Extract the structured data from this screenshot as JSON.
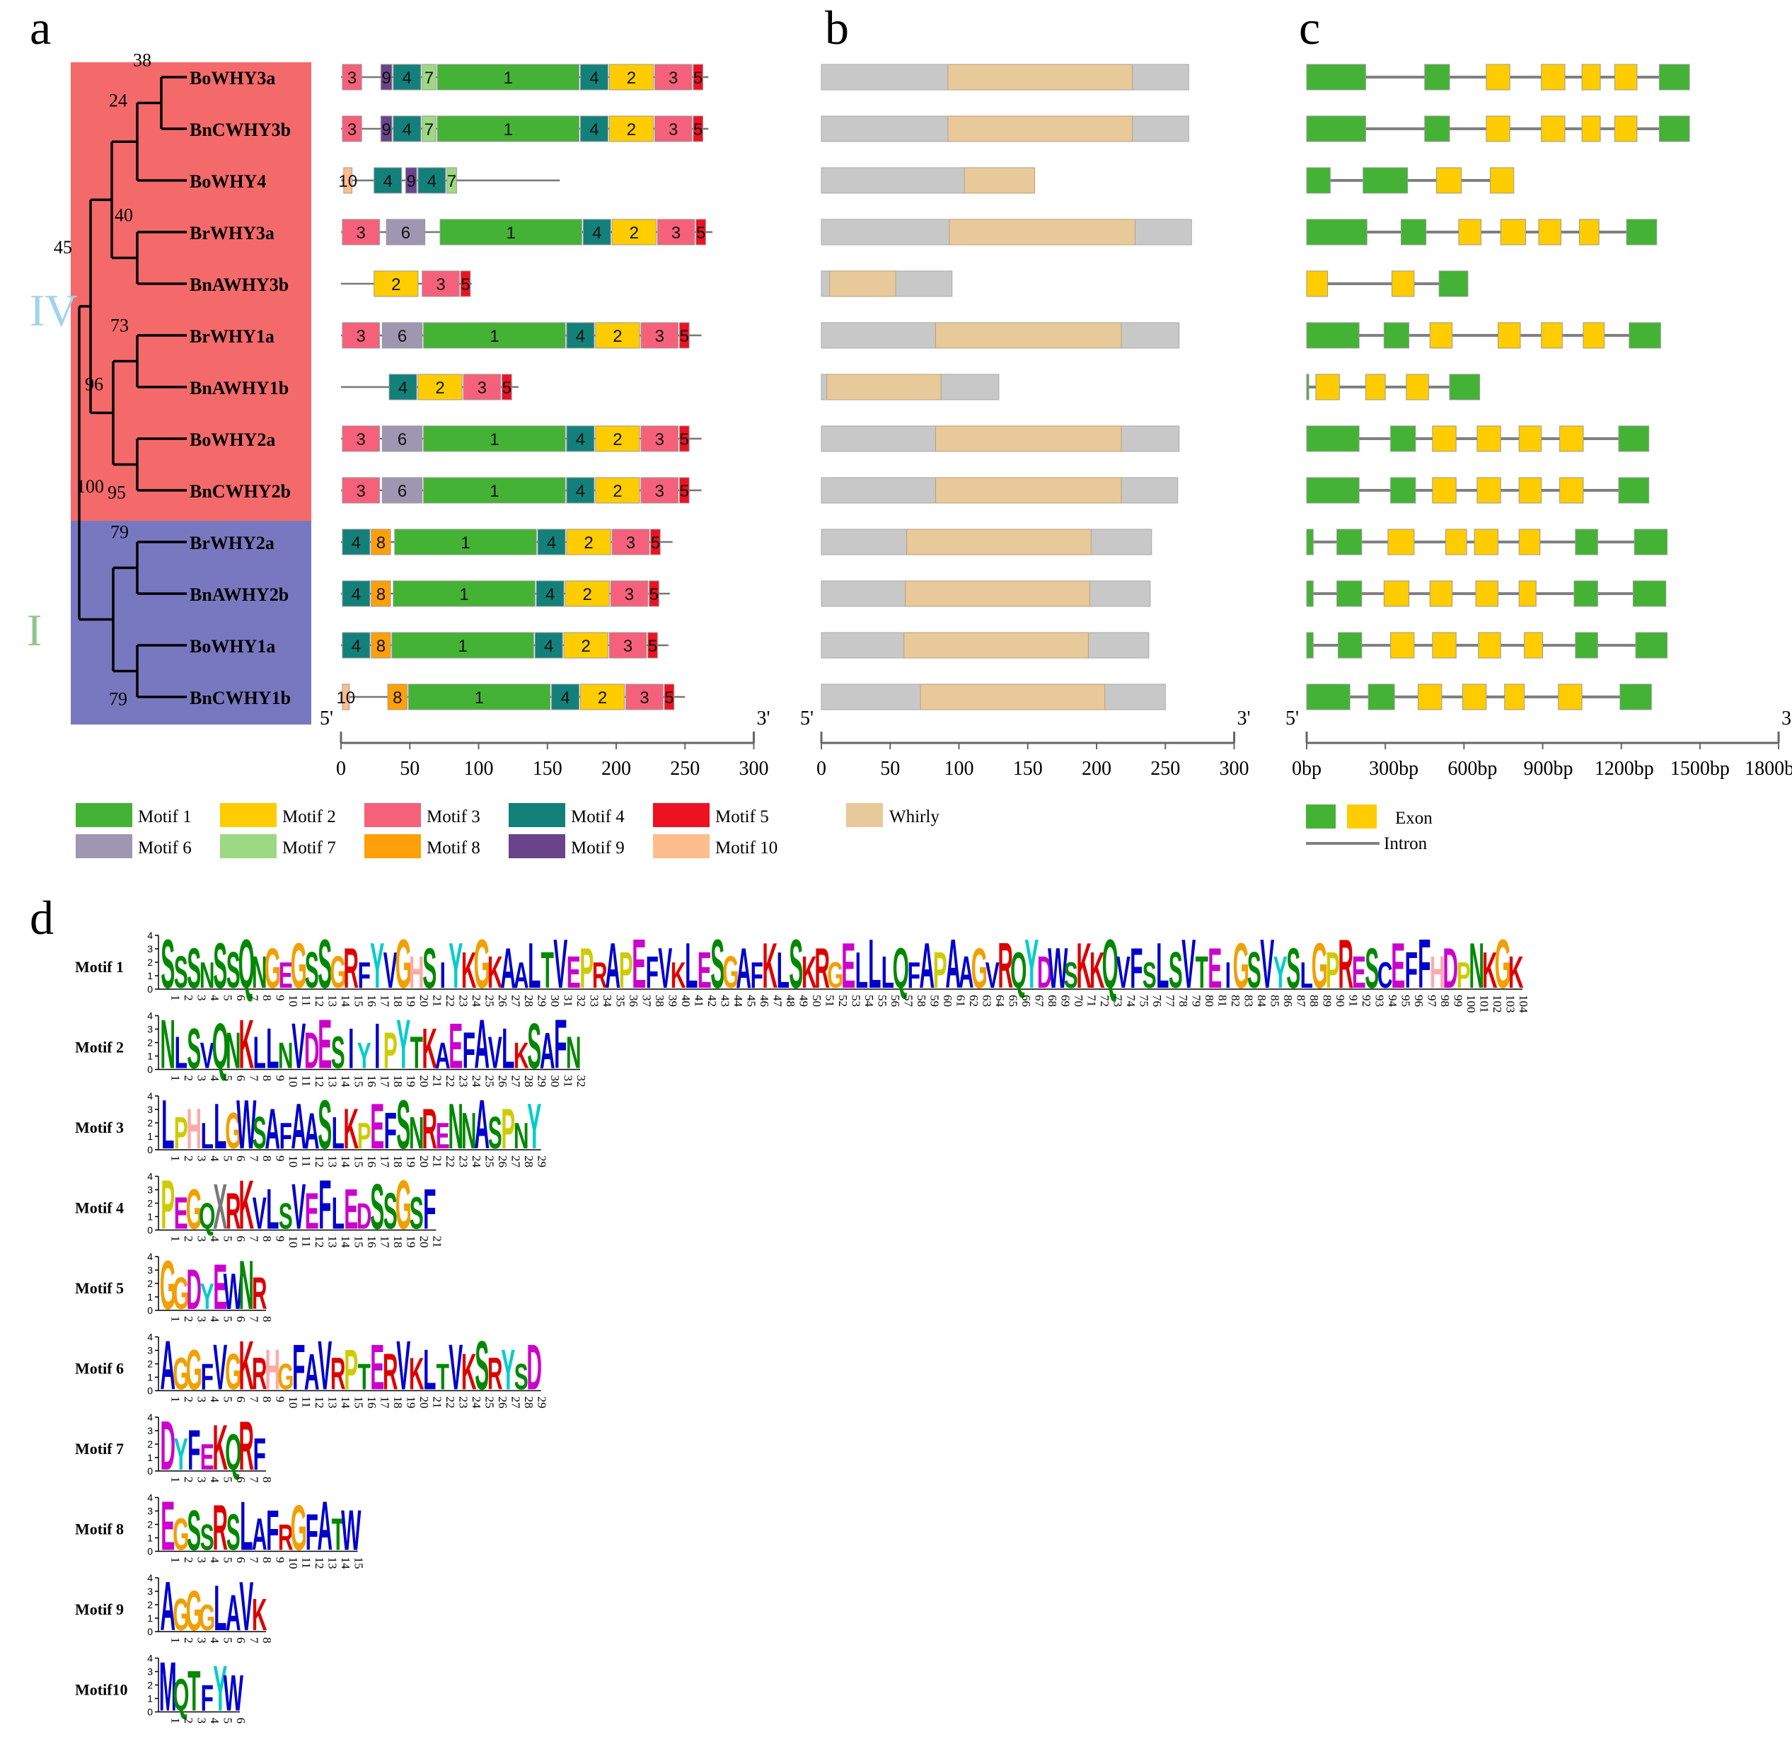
{
  "panels": {
    "a": "a",
    "b": "b",
    "c": "c",
    "d": "d"
  },
  "clades": [
    {
      "label": "IV",
      "color": "#f46a6a",
      "text_color": "#9fd3ee"
    },
    {
      "label": "I",
      "color": "#7878c0",
      "text_color": "#8cc88a"
    }
  ],
  "genes": [
    "BoWHY3a",
    "BnCWHY3b",
    "BoWHY4",
    "BrWHY3a",
    "BnAWHY3b",
    "BrWHY1a",
    "BnAWHY1b",
    "BoWHY2a",
    "BnCWHY2b",
    "BrWHY2a",
    "BnAWHY2b",
    "BoWHY1a",
    "BnCWHY1b"
  ],
  "bootstrap": [
    "38",
    "24",
    "45",
    "40",
    "73",
    "96",
    "95",
    "79",
    "100",
    "79"
  ],
  "motif_colors": {
    "1": "#44b335",
    "2": "#ffcc00",
    "3": "#f5607a",
    "4": "#138079",
    "5": "#ee1122",
    "6": "#9f97b1",
    "7": "#9dd883",
    "8": "#ff9f0a",
    "9": "#6a448a",
    "10": "#ffbd8e"
  },
  "motif_structures": [
    {
      "len": 267,
      "motifs": [
        [
          1,
          15,
          "3"
        ],
        [
          29,
          37,
          "9"
        ],
        [
          38,
          58,
          "4"
        ],
        [
          59,
          69,
          "7"
        ],
        [
          70,
          173,
          "1"
        ],
        [
          174,
          194,
          "4"
        ],
        [
          195,
          227,
          "2"
        ],
        [
          228,
          255,
          "3"
        ],
        [
          256,
          263,
          "5"
        ]
      ]
    },
    {
      "len": 267,
      "motifs": [
        [
          1,
          15,
          "3"
        ],
        [
          29,
          37,
          "9"
        ],
        [
          38,
          58,
          "4"
        ],
        [
          59,
          69,
          "7"
        ],
        [
          70,
          173,
          "1"
        ],
        [
          174,
          194,
          "4"
        ],
        [
          195,
          227,
          "2"
        ],
        [
          228,
          255,
          "3"
        ],
        [
          256,
          263,
          "5"
        ]
      ]
    },
    {
      "len": 159,
      "motifs": [
        [
          2,
          8,
          "10"
        ],
        [
          24,
          44,
          "4"
        ],
        [
          47,
          55,
          "9"
        ],
        [
          56,
          76,
          "4"
        ],
        [
          77,
          84,
          "7"
        ]
      ]
    },
    {
      "len": 270,
      "motifs": [
        [
          1,
          28,
          "3"
        ],
        [
          33,
          61,
          "6"
        ],
        [
          72,
          175,
          "1"
        ],
        [
          176,
          196,
          "4"
        ],
        [
          197,
          229,
          "2"
        ],
        [
          230,
          257,
          "3"
        ],
        [
          258,
          265,
          "5"
        ]
      ]
    },
    {
      "len": 95,
      "motifs": [
        [
          24,
          56,
          "2"
        ],
        [
          59,
          86,
          "3"
        ],
        [
          87,
          94,
          "5"
        ]
      ]
    },
    {
      "len": 262,
      "motifs": [
        [
          1,
          28,
          "3"
        ],
        [
          30,
          59,
          "6"
        ],
        [
          60,
          163,
          "1"
        ],
        [
          164,
          184,
          "4"
        ],
        [
          185,
          217,
          "2"
        ],
        [
          218,
          245,
          "3"
        ],
        [
          246,
          253,
          "5"
        ]
      ]
    },
    {
      "len": 129,
      "motifs": [
        [
          35,
          55,
          "4"
        ],
        [
          56,
          88,
          "2"
        ],
        [
          89,
          116,
          "3"
        ],
        [
          117,
          124,
          "5"
        ]
      ]
    },
    {
      "len": 262,
      "motifs": [
        [
          1,
          28,
          "3"
        ],
        [
          30,
          59,
          "6"
        ],
        [
          60,
          163,
          "1"
        ],
        [
          164,
          184,
          "4"
        ],
        [
          185,
          217,
          "2"
        ],
        [
          218,
          245,
          "3"
        ],
        [
          246,
          253,
          "5"
        ]
      ]
    },
    {
      "len": 262,
      "motifs": [
        [
          1,
          28,
          "3"
        ],
        [
          30,
          59,
          "6"
        ],
        [
          60,
          163,
          "1"
        ],
        [
          164,
          184,
          "4"
        ],
        [
          185,
          217,
          "2"
        ],
        [
          218,
          245,
          "3"
        ],
        [
          246,
          253,
          "5"
        ]
      ]
    },
    {
      "len": 241,
      "motifs": [
        [
          1,
          21,
          "4"
        ],
        [
          22,
          36,
          "8"
        ],
        [
          39,
          142,
          "1"
        ],
        [
          143,
          163,
          "4"
        ],
        [
          164,
          196,
          "2"
        ],
        [
          197,
          224,
          "3"
        ],
        [
          225,
          232,
          "5"
        ]
      ]
    },
    {
      "len": 239,
      "motifs": [
        [
          1,
          21,
          "4"
        ],
        [
          22,
          36,
          "8"
        ],
        [
          38,
          141,
          "1"
        ],
        [
          142,
          162,
          "4"
        ],
        [
          163,
          195,
          "2"
        ],
        [
          196,
          223,
          "3"
        ],
        [
          224,
          231,
          "5"
        ]
      ]
    },
    {
      "len": 238,
      "motifs": [
        [
          1,
          21,
          "4"
        ],
        [
          22,
          36,
          "8"
        ],
        [
          37,
          140,
          "1"
        ],
        [
          141,
          161,
          "4"
        ],
        [
          162,
          194,
          "2"
        ],
        [
          195,
          222,
          "3"
        ],
        [
          223,
          230,
          "5"
        ]
      ]
    },
    {
      "len": 250,
      "motifs": [
        [
          1,
          6,
          "10"
        ],
        [
          34,
          48,
          "8"
        ],
        [
          49,
          152,
          "1"
        ],
        [
          153,
          173,
          "4"
        ],
        [
          174,
          206,
          "2"
        ],
        [
          207,
          234,
          "3"
        ],
        [
          235,
          242,
          "5"
        ]
      ]
    }
  ],
  "domain_structures": [
    {
      "len": 267,
      "whirly": [
        92,
        226
      ]
    },
    {
      "len": 267,
      "whirly": [
        92,
        226
      ]
    },
    {
      "len": 155,
      "whirly": [
        104,
        155
      ]
    },
    {
      "len": 269,
      "whirly": [
        93,
        228
      ]
    },
    {
      "len": 95,
      "whirly": [
        6,
        54
      ]
    },
    {
      "len": 260,
      "whirly": [
        83,
        218
      ]
    },
    {
      "len": 129,
      "whirly": [
        4,
        87
      ]
    },
    {
      "len": 260,
      "whirly": [
        83,
        218
      ]
    },
    {
      "len": 259,
      "whirly": [
        83,
        218
      ]
    },
    {
      "len": 240,
      "whirly": [
        62,
        196
      ]
    },
    {
      "len": 239,
      "whirly": [
        61,
        195
      ]
    },
    {
      "len": 238,
      "whirly": [
        60,
        194
      ]
    },
    {
      "len": 250,
      "whirly": [
        72,
        206
      ]
    }
  ],
  "gene_structures": [
    {
      "len": 1460,
      "exons": [
        [
          0,
          225,
          "g"
        ],
        [
          450,
          545,
          "g"
        ],
        [
          685,
          775,
          "y"
        ],
        [
          895,
          985,
          "y"
        ],
        [
          1050,
          1120,
          "y"
        ],
        [
          1175,
          1260,
          "y"
        ],
        [
          1345,
          1460,
          "g"
        ]
      ]
    },
    {
      "len": 1460,
      "exons": [
        [
          0,
          225,
          "g"
        ],
        [
          450,
          545,
          "g"
        ],
        [
          685,
          775,
          "y"
        ],
        [
          895,
          985,
          "y"
        ],
        [
          1050,
          1120,
          "y"
        ],
        [
          1175,
          1260,
          "y"
        ],
        [
          1345,
          1460,
          "g"
        ]
      ]
    },
    {
      "len": 790,
      "exons": [
        [
          0,
          90,
          "g"
        ],
        [
          215,
          385,
          "g"
        ],
        [
          495,
          590,
          "y"
        ],
        [
          700,
          790,
          "y"
        ]
      ]
    },
    {
      "len": 1335,
      "exons": [
        [
          0,
          230,
          "g"
        ],
        [
          360,
          455,
          "g"
        ],
        [
          580,
          665,
          "y"
        ],
        [
          740,
          835,
          "y"
        ],
        [
          885,
          970,
          "y"
        ],
        [
          1040,
          1115,
          "y"
        ],
        [
          1220,
          1335,
          "g"
        ]
      ]
    },
    {
      "len": 615,
      "exons": [
        [
          0,
          80,
          "y"
        ],
        [
          325,
          410,
          "y"
        ],
        [
          505,
          615,
          "g"
        ]
      ]
    },
    {
      "len": 1350,
      "exons": [
        [
          0,
          200,
          "g"
        ],
        [
          295,
          390,
          "g"
        ],
        [
          470,
          555,
          "y"
        ],
        [
          730,
          815,
          "y"
        ],
        [
          895,
          975,
          "y"
        ],
        [
          1055,
          1135,
          "y"
        ],
        [
          1230,
          1350,
          "g"
        ]
      ]
    },
    {
      "len": 660,
      "exons": [
        [
          0,
          8,
          "g"
        ],
        [
          35,
          125,
          "y"
        ],
        [
          225,
          300,
          "y"
        ],
        [
          380,
          465,
          "y"
        ],
        [
          545,
          660,
          "g"
        ]
      ]
    },
    {
      "len": 1305,
      "exons": [
        [
          0,
          200,
          "g"
        ],
        [
          320,
          415,
          "g"
        ],
        [
          480,
          570,
          "y"
        ],
        [
          650,
          740,
          "y"
        ],
        [
          810,
          895,
          "y"
        ],
        [
          965,
          1055,
          "y"
        ],
        [
          1190,
          1305,
          "g"
        ]
      ]
    },
    {
      "len": 1305,
      "exons": [
        [
          0,
          200,
          "g"
        ],
        [
          320,
          415,
          "g"
        ],
        [
          480,
          570,
          "y"
        ],
        [
          650,
          740,
          "y"
        ],
        [
          810,
          895,
          "y"
        ],
        [
          965,
          1055,
          "y"
        ],
        [
          1190,
          1305,
          "g"
        ]
      ]
    },
    {
      "len": 1375,
      "exons": [
        [
          0,
          25,
          "g"
        ],
        [
          115,
          210,
          "g"
        ],
        [
          310,
          410,
          "y"
        ],
        [
          530,
          610,
          "y"
        ],
        [
          640,
          730,
          "y"
        ],
        [
          810,
          890,
          "y"
        ],
        [
          1025,
          1110,
          "g"
        ],
        [
          1250,
          1375,
          "g"
        ]
      ]
    },
    {
      "len": 1370,
      "exons": [
        [
          0,
          25,
          "g"
        ],
        [
          115,
          210,
          "g"
        ],
        [
          295,
          390,
          "y"
        ],
        [
          470,
          555,
          "y"
        ],
        [
          645,
          730,
          "y"
        ],
        [
          810,
          875,
          "y"
        ],
        [
          1020,
          1110,
          "g"
        ],
        [
          1245,
          1370,
          "g"
        ]
      ]
    },
    {
      "len": 1375,
      "exons": [
        [
          0,
          25,
          "g"
        ],
        [
          120,
          210,
          "g"
        ],
        [
          320,
          410,
          "y"
        ],
        [
          480,
          570,
          "y"
        ],
        [
          655,
          740,
          "y"
        ],
        [
          830,
          900,
          "y"
        ],
        [
          1025,
          1110,
          "g"
        ],
        [
          1255,
          1375,
          "g"
        ]
      ]
    },
    {
      "len": 1315,
      "exons": [
        [
          0,
          165,
          "g"
        ],
        [
          235,
          335,
          "g"
        ],
        [
          425,
          515,
          "y"
        ],
        [
          595,
          685,
          "y"
        ],
        [
          755,
          830,
          "y"
        ],
        [
          960,
          1050,
          "y"
        ],
        [
          1195,
          1315,
          "g"
        ]
      ]
    }
  ],
  "axis_a": {
    "ticks": [
      "0",
      "50",
      "100",
      "150",
      "200",
      "250",
      "300"
    ],
    "left": "5'",
    "right": "3'"
  },
  "axis_b": {
    "ticks": [
      "0",
      "50",
      "100",
      "150",
      "200",
      "250",
      "300"
    ],
    "left": "5'",
    "right": "3'"
  },
  "axis_c": {
    "ticks": [
      "0bp",
      "300bp",
      "600bp",
      "900bp",
      "1200bp",
      "1500bp",
      "1800bp"
    ],
    "left": "5'",
    "right": "3'"
  },
  "legend_motifs": [
    {
      "label": "Motif 1",
      "key": "1"
    },
    {
      "label": "Motif 2",
      "key": "2"
    },
    {
      "label": "Motif 3",
      "key": "3"
    },
    {
      "label": "Motif 4",
      "key": "4"
    },
    {
      "label": "Motif 5",
      "key": "5"
    },
    {
      "label": "Motif 6",
      "key": "6"
    },
    {
      "label": "Motif 7",
      "key": "7"
    },
    {
      "label": "Motif 8",
      "key": "8"
    },
    {
      "label": "Motif 9",
      "key": "9"
    },
    {
      "label": "Motif 10",
      "key": "10"
    }
  ],
  "legend_b": {
    "label": "Whirly",
    "color": "#e8c99a",
    "protein_color": "#c8c8c8"
  },
  "legend_c": {
    "exon": "Exon",
    "intron": "Intron",
    "exon_green": "#44b335",
    "exon_yellow": "#ffcc00",
    "intron_color": "#808080"
  },
  "logo_colors": {
    "A": "#0000cc",
    "C": "#0000cc",
    "F": "#0000cc",
    "I": "#0000cc",
    "L": "#0000cc",
    "M": "#0000cc",
    "V": "#0000cc",
    "W": "#0000cc",
    "G": "#f0a000",
    "D": "#cc00cc",
    "E": "#cc00cc",
    "K": "#dd0000",
    "R": "#dd0000",
    "H": "#ffaaaa",
    "N": "#008800",
    "Q": "#008800",
    "S": "#008800",
    "T": "#008800",
    "P": "#cccc00",
    "Y": "#00cccc",
    "X": "#777777"
  },
  "logos": [
    {
      "name": "Motif 1",
      "seq": "SSSNSSQNGEGSSGRFYVGHSIYKGKAALTVEPRAPEFVKLESGAFKLSKRGELLLQFAPAAGVRQYDWSKKQVFSLSVTEIGSVYSLGPRESCEFFHDPNKGK",
      "n": 104
    },
    {
      "name": "Motif 2",
      "seq": "NLSVQNKLLNVDESIYIPYTKAEFAVLKSAFN",
      "n": 32
    },
    {
      "name": "Motif 3",
      "seq": "LPHLLGWSAFAASLKPEFSNRENNASPNY",
      "n": 29
    },
    {
      "name": "Motif 4",
      "seq": "PEGQXRKVLSVEFLEDSSGSF",
      "n": 21
    },
    {
      "name": "Motif 5",
      "seq": "GGDYEWNR",
      "n": 8
    },
    {
      "name": "Motif 6",
      "seq": "AGGFVGKRHGFAVRPTERVKLTVKSRYSD",
      "n": 29
    },
    {
      "name": "Motif 7",
      "seq": "DYFEKQRF",
      "n": 8
    },
    {
      "name": "Motif 8",
      "seq": "EGSSRSLAFRGFATW",
      "n": 15
    },
    {
      "name": "Motif 9",
      "seq": "AGGGLAVK",
      "n": 8
    },
    {
      "name": "Motif10",
      "seq": "MQTFYW",
      "n": 6
    }
  ],
  "logo_yaxis": [
    "0",
    "1",
    "2",
    "3",
    "4"
  ]
}
